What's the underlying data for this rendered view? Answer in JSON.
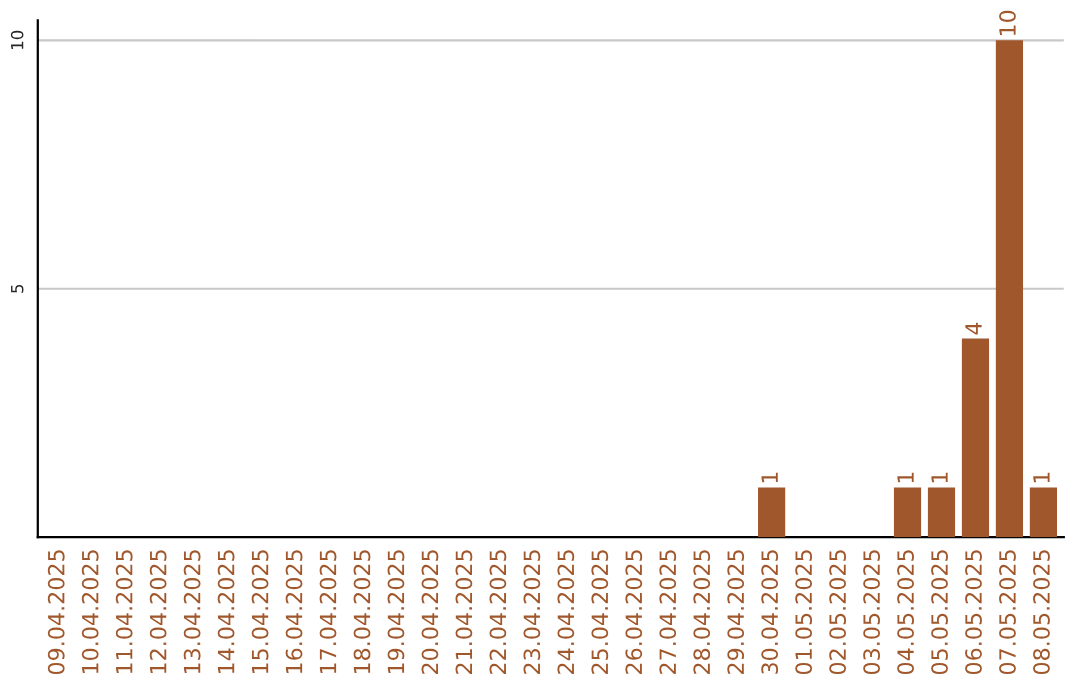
{
  "chart_data": {
    "type": "bar",
    "categories": [
      "09.04.2025",
      "10.04.2025",
      "11.04.2025",
      "12.04.2025",
      "13.04.2025",
      "14.04.2025",
      "15.04.2025",
      "16.04.2025",
      "17.04.2025",
      "18.04.2025",
      "19.04.2025",
      "20.04.2025",
      "21.04.2025",
      "22.04.2025",
      "23.04.2025",
      "24.04.2025",
      "25.04.2025",
      "26.04.2025",
      "27.04.2025",
      "28.04.2025",
      "29.04.2025",
      "30.04.2025",
      "01.05.2025",
      "02.05.2025",
      "03.05.2025",
      "04.05.2025",
      "05.05.2025",
      "06.05.2025",
      "07.05.2025",
      "08.05.2025"
    ],
    "values": [
      0,
      0,
      0,
      0,
      0,
      0,
      0,
      0,
      0,
      0,
      0,
      0,
      0,
      0,
      0,
      0,
      0,
      0,
      0,
      0,
      0,
      1,
      0,
      0,
      0,
      1,
      1,
      4,
      10,
      1
    ],
    "value_labels": [
      null,
      null,
      null,
      null,
      null,
      null,
      null,
      null,
      null,
      null,
      null,
      null,
      null,
      null,
      null,
      null,
      null,
      null,
      null,
      null,
      null,
      "1",
      null,
      null,
      null,
      "1",
      "1",
      "4",
      "10",
      "1"
    ],
    "color": "#a0572b",
    "ylim": [
      0,
      10.4
    ],
    "yticks": [
      5,
      10
    ],
    "grid": "y"
  }
}
